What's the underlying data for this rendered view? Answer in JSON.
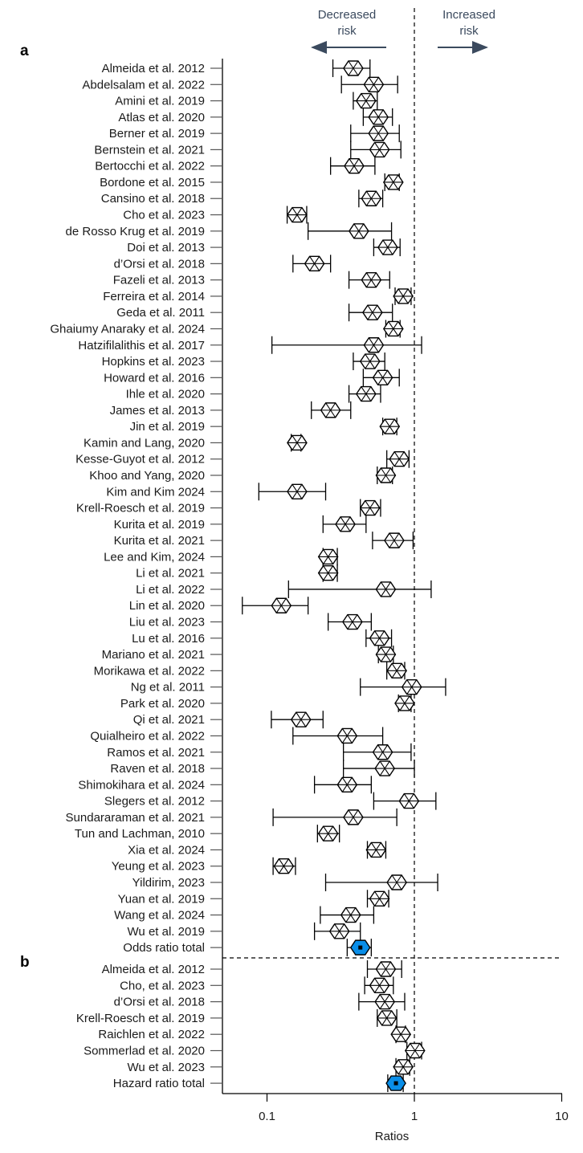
{
  "chart_data": {
    "type": "forest",
    "xlabel": "Ratios",
    "xscale": "log",
    "xlim": [
      0.06,
      10
    ],
    "xticks": [
      0.1,
      1,
      10
    ],
    "xtick_labels": [
      "0.1",
      "1",
      "10"
    ],
    "reference_line": 1,
    "header": {
      "left": [
        "Decreased",
        "risk"
      ],
      "right": [
        "Increased",
        "risk"
      ]
    },
    "colors": {
      "marker": "#000000",
      "total": "#0a8ee8",
      "header": "#3b4a5e"
    },
    "panels": [
      {
        "label": "a",
        "rows": [
          {
            "study": "Almeida et al. 2012",
            "est": 0.385,
            "lo": 0.28,
            "hi": 0.5
          },
          {
            "study": "Abdelsalam et al. 2022",
            "est": 0.53,
            "lo": 0.32,
            "hi": 0.77
          },
          {
            "study": "Amini et al. 2019",
            "est": 0.47,
            "lo": 0.385,
            "hi": 0.56
          },
          {
            "study": "Atlas et al. 2020",
            "est": 0.57,
            "lo": 0.45,
            "hi": 0.71
          },
          {
            "study": "Berner et al. 2019",
            "est": 0.57,
            "lo": 0.37,
            "hi": 0.79
          },
          {
            "study": "Bernstein et al. 2021",
            "est": 0.58,
            "lo": 0.37,
            "hi": 0.81
          },
          {
            "study": "Bertocchi et al. 2022",
            "est": 0.39,
            "lo": 0.27,
            "hi": 0.54
          },
          {
            "study": "Bordone et al. 2015",
            "est": 0.72,
            "lo": 0.63,
            "hi": 0.79
          },
          {
            "study": "Cansino et al. 2018",
            "est": 0.51,
            "lo": 0.42,
            "hi": 0.61
          },
          {
            "study": "Cho et al. 2023",
            "est": 0.16,
            "lo": 0.137,
            "hi": 0.186
          },
          {
            "study": "de Rosso Krug et al. 2019",
            "est": 0.42,
            "lo": 0.19,
            "hi": 0.7
          },
          {
            "study": "Doi et al. 2013",
            "est": 0.66,
            "lo": 0.53,
            "hi": 0.8
          },
          {
            "study": "d’Orsi et al. 2018",
            "est": 0.21,
            "lo": 0.15,
            "hi": 0.27
          },
          {
            "study": "Fazeli et al. 2013",
            "est": 0.51,
            "lo": 0.36,
            "hi": 0.68
          },
          {
            "study": "Ferreira et al. 2014",
            "est": 0.84,
            "lo": 0.74,
            "hi": 0.95
          },
          {
            "study": "Geda et al. 2011",
            "est": 0.52,
            "lo": 0.36,
            "hi": 0.71
          },
          {
            "study": "Ghaiumy Anaraky et al. 2024",
            "est": 0.72,
            "lo": 0.64,
            "hi": 0.8
          },
          {
            "study": "Hatzifilalithis et al. 2017",
            "est": 0.53,
            "lo": 0.108,
            "hi": 1.12
          },
          {
            "study": "Hopkins et al. 2023",
            "est": 0.5,
            "lo": 0.385,
            "hi": 0.63
          },
          {
            "study": "Howard et al. 2016",
            "est": 0.61,
            "lo": 0.45,
            "hi": 0.79
          },
          {
            "study": "Ihle et al. 2020",
            "est": 0.47,
            "lo": 0.36,
            "hi": 0.59
          },
          {
            "study": "James et al. 2013",
            "est": 0.27,
            "lo": 0.2,
            "hi": 0.37
          },
          {
            "study": "Jin et al. 2019",
            "est": 0.68,
            "lo": 0.61,
            "hi": 0.76
          },
          {
            "study": "Kamin and Lang, 2020",
            "est": 0.16,
            "lo": 0.146,
            "hi": 0.17
          },
          {
            "study": "Kesse-Guyot et al. 2012",
            "est": 0.79,
            "lo": 0.65,
            "hi": 0.92
          },
          {
            "study": "Khoo and Yang, 2020",
            "est": 0.64,
            "lo": 0.56,
            "hi": 0.71
          },
          {
            "study": "Kim and Kim 2024",
            "est": 0.16,
            "lo": 0.088,
            "hi": 0.25
          },
          {
            "study": "Krell-Roesch et al. 2019",
            "est": 0.5,
            "lo": 0.43,
            "hi": 0.59
          },
          {
            "study": "Kurita et al. 2019",
            "est": 0.34,
            "lo": 0.24,
            "hi": 0.47
          },
          {
            "study": "Kurita et al. 2021",
            "est": 0.73,
            "lo": 0.52,
            "hi": 0.98
          },
          {
            "study": "Lee and Kim, 2024",
            "est": 0.26,
            "lo": 0.24,
            "hi": 0.3
          },
          {
            "study": "Li et al. 2021",
            "est": 0.26,
            "lo": 0.24,
            "hi": 0.3
          },
          {
            "study": "Li et al. 2022",
            "est": 0.64,
            "lo": 0.14,
            "hi": 1.3
          },
          {
            "study": "Lin et al. 2020",
            "est": 0.125,
            "lo": 0.068,
            "hi": 0.19
          },
          {
            "study": "Liu et al. 2023",
            "est": 0.38,
            "lo": 0.26,
            "hi": 0.51
          },
          {
            "study": "Lu et al. 2016",
            "est": 0.58,
            "lo": 0.47,
            "hi": 0.7
          },
          {
            "study": "Mariano et al. 2021",
            "est": 0.64,
            "lo": 0.57,
            "hi": 0.72
          },
          {
            "study": "Morikawa et al. 2022",
            "est": 0.76,
            "lo": 0.65,
            "hi": 0.86
          },
          {
            "study": "Ng et al. 2011",
            "est": 0.96,
            "lo": 0.43,
            "hi": 1.63
          },
          {
            "study": "Park et al. 2020",
            "est": 0.86,
            "lo": 0.78,
            "hi": 0.95
          },
          {
            "study": "Qi et al. 2021",
            "est": 0.17,
            "lo": 0.107,
            "hi": 0.24
          },
          {
            "study": "Quialheiro et al. 2022",
            "est": 0.35,
            "lo": 0.15,
            "hi": 0.61
          },
          {
            "study": "Ramos et al. 2021",
            "est": 0.61,
            "lo": 0.33,
            "hi": 0.95
          },
          {
            "study": "Raven et al. 2018",
            "est": 0.63,
            "lo": 0.33,
            "hi": 1.0
          },
          {
            "study": "Shimokihara et al. 2024",
            "est": 0.35,
            "lo": 0.21,
            "hi": 0.51
          },
          {
            "study": "Slegers et al. 2012",
            "est": 0.92,
            "lo": 0.53,
            "hi": 1.4
          },
          {
            "study": "Sundararaman et al. 2021",
            "est": 0.385,
            "lo": 0.11,
            "hi": 0.76
          },
          {
            "study": "Tun and Lachman, 2010",
            "est": 0.26,
            "lo": 0.22,
            "hi": 0.31
          },
          {
            "study": "Xia et al. 2024",
            "est": 0.55,
            "lo": 0.48,
            "hi": 0.64
          },
          {
            "study": "Yeung et al. 2023",
            "est": 0.13,
            "lo": 0.11,
            "hi": 0.156
          },
          {
            "study": "Yildirim, 2023",
            "est": 0.76,
            "lo": 0.25,
            "hi": 1.44
          },
          {
            "study": "Yuan et al. 2019",
            "est": 0.58,
            "lo": 0.48,
            "hi": 0.67
          },
          {
            "study": "Wang et al. 2024",
            "est": 0.37,
            "lo": 0.23,
            "hi": 0.53
          },
          {
            "study": "Wu et al. 2019",
            "est": 0.31,
            "lo": 0.21,
            "hi": 0.43
          },
          {
            "study": "Odds ratio total",
            "est": 0.43,
            "lo": 0.35,
            "hi": 0.51,
            "total": true
          }
        ]
      },
      {
        "label": "b",
        "rows": [
          {
            "study": "Almeida et al. 2012",
            "est": 0.64,
            "lo": 0.48,
            "hi": 0.82
          },
          {
            "study": "Cho, et al. 2023",
            "est": 0.58,
            "lo": 0.46,
            "hi": 0.72
          },
          {
            "study": "d’Orsi et al. 2018",
            "est": 0.63,
            "lo": 0.42,
            "hi": 0.86
          },
          {
            "study": "Krell-Roesch et al. 2019",
            "est": 0.65,
            "lo": 0.56,
            "hi": 0.76
          },
          {
            "study": "Raichlen et al. 2022",
            "est": 0.81,
            "lo": 0.75,
            "hi": 0.87
          },
          {
            "study": "Sommerlad et al. 2020",
            "est": 1.01,
            "lo": 0.89,
            "hi": 1.12
          },
          {
            "study": "Wu et al. 2023",
            "est": 0.84,
            "lo": 0.75,
            "hi": 0.93
          },
          {
            "study": "Hazard ratio total",
            "est": 0.75,
            "lo": 0.66,
            "hi": 0.84,
            "total": true
          }
        ]
      }
    ]
  }
}
